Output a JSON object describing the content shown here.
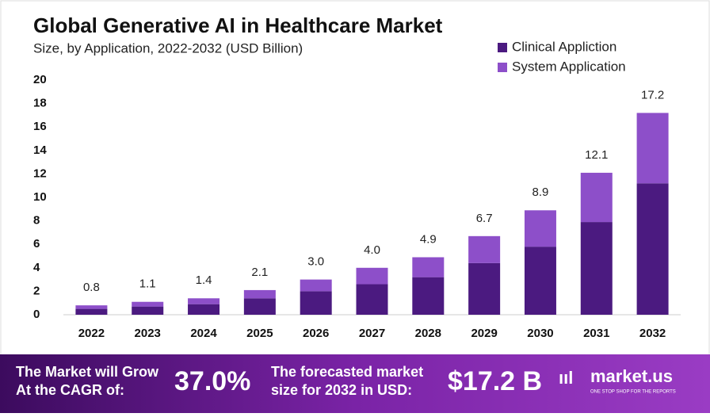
{
  "chart_data": {
    "type": "bar",
    "stacked": true,
    "title": "Global Generative AI in Healthcare Market",
    "subtitle": "Size, by Application, 2022-2032 (USD Billion)",
    "categories": [
      "2022",
      "2023",
      "2024",
      "2025",
      "2026",
      "2027",
      "2028",
      "2029",
      "2030",
      "2031",
      "2032"
    ],
    "series": [
      {
        "name": "Clinical Appliction",
        "color": "#4b1a80",
        "values": [
          0.5,
          0.7,
          0.9,
          1.4,
          2.0,
          2.6,
          3.2,
          4.4,
          5.8,
          7.9,
          11.2
        ]
      },
      {
        "name": "System Application",
        "color": "#8d4fc9",
        "values": [
          0.3,
          0.4,
          0.5,
          0.7,
          1.0,
          1.4,
          1.7,
          2.3,
          3.1,
          4.2,
          6.0
        ]
      }
    ],
    "total_labels": [
      "0.8",
      "1.1",
      "1.4",
      "2.1",
      "3.0",
      "4.0",
      "4.9",
      "6.7",
      "8.9",
      "12.1",
      "17.2"
    ],
    "ylim": [
      0,
      20
    ],
    "yticks": [
      0,
      2,
      4,
      6,
      8,
      10,
      12,
      14,
      16,
      18,
      20
    ],
    "grid": false,
    "legend": "top-right"
  },
  "footer": {
    "cagr_text": [
      "The Market will Grow",
      "At the CAGR of:"
    ],
    "cagr": "37.0%",
    "forecast_text": [
      "The forecasted market",
      "size for 2032 in USD:"
    ],
    "forecast": "$17.2 B",
    "brand": "market.us",
    "tagline": "ONE STOP SHOP FOR THE REPORTS"
  }
}
